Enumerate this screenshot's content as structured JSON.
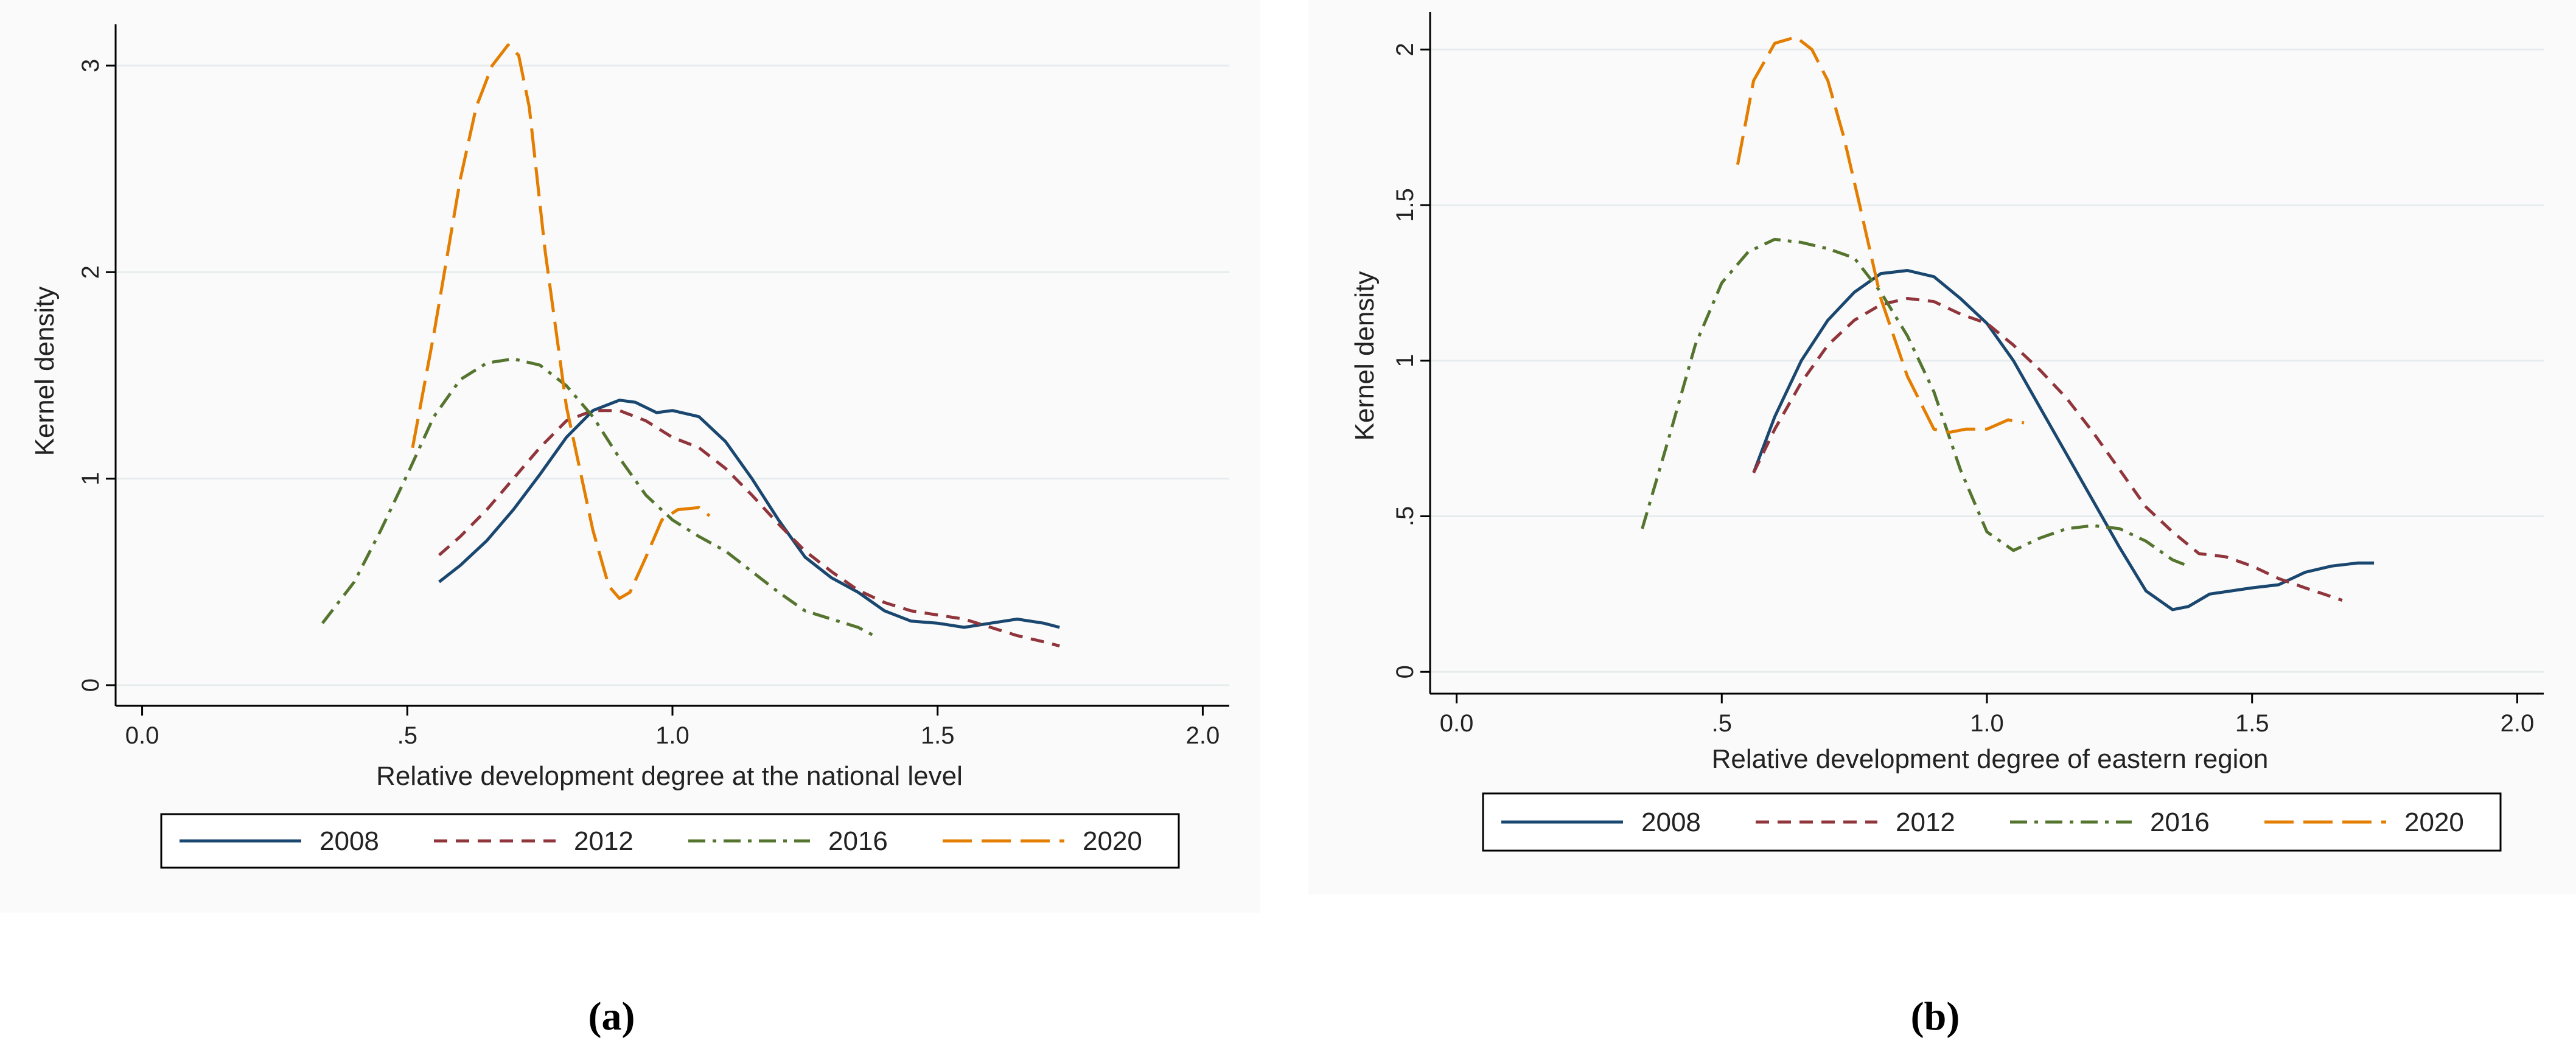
{
  "chart_data": [
    {
      "type": "line",
      "panel_label": "(a)",
      "xlabel": "Relative development degree at the national level",
      "ylabel": "Kernel density",
      "xlim": [
        -0.05,
        2.05
      ],
      "ylim": [
        -0.1,
        3.2
      ],
      "xticks": [
        0,
        0.5,
        1,
        1.5,
        2
      ],
      "xtick_labels": [
        "0.0",
        ".5",
        "1.0",
        "1.5",
        "2.0"
      ],
      "yticks": [
        0,
        1,
        2,
        3
      ],
      "ytick_labels": [
        "0",
        "1",
        "2",
        "3"
      ],
      "grid": true,
      "legend_position": "bottom",
      "series": [
        {
          "name": "2008",
          "color": "#1a476f",
          "dash": "solid",
          "x": [
            0.56,
            0.6,
            0.65,
            0.7,
            0.75,
            0.8,
            0.85,
            0.9,
            0.93,
            0.97,
            1.0,
            1.05,
            1.1,
            1.15,
            1.2,
            1.25,
            1.3,
            1.35,
            1.4,
            1.45,
            1.5,
            1.55,
            1.6,
            1.65,
            1.7,
            1.73
          ],
          "y": [
            0.5,
            0.58,
            0.7,
            0.85,
            1.02,
            1.2,
            1.33,
            1.38,
            1.37,
            1.32,
            1.33,
            1.3,
            1.18,
            1.0,
            0.8,
            0.62,
            0.52,
            0.45,
            0.36,
            0.31,
            0.3,
            0.28,
            0.3,
            0.32,
            0.3,
            0.28
          ]
        },
        {
          "name": "2012",
          "color": "#90353b",
          "dash": "short",
          "x": [
            0.56,
            0.6,
            0.65,
            0.7,
            0.75,
            0.8,
            0.85,
            0.9,
            0.95,
            1.0,
            1.05,
            1.1,
            1.15,
            1.2,
            1.25,
            1.3,
            1.35,
            1.4,
            1.45,
            1.5,
            1.55,
            1.6,
            1.65,
            1.7,
            1.73
          ],
          "y": [
            0.63,
            0.72,
            0.85,
            1.0,
            1.15,
            1.28,
            1.33,
            1.33,
            1.28,
            1.2,
            1.15,
            1.05,
            0.92,
            0.78,
            0.65,
            0.55,
            0.46,
            0.4,
            0.36,
            0.34,
            0.32,
            0.28,
            0.24,
            0.21,
            0.19
          ]
        },
        {
          "name": "2016",
          "color": "#55752f",
          "dash": "dashdot",
          "x": [
            0.34,
            0.4,
            0.45,
            0.5,
            0.55,
            0.6,
            0.65,
            0.7,
            0.75,
            0.8,
            0.85,
            0.9,
            0.95,
            1.0,
            1.05,
            1.1,
            1.15,
            1.2,
            1.25,
            1.3,
            1.35,
            1.38
          ],
          "y": [
            0.3,
            0.5,
            0.75,
            1.02,
            1.3,
            1.48,
            1.56,
            1.58,
            1.55,
            1.45,
            1.3,
            1.1,
            0.92,
            0.8,
            0.72,
            0.65,
            0.55,
            0.45,
            0.36,
            0.32,
            0.28,
            0.24
          ]
        },
        {
          "name": "2020",
          "color": "#e37e00",
          "dash": "longdash",
          "x": [
            0.51,
            0.55,
            0.6,
            0.63,
            0.66,
            0.69,
            0.71,
            0.73,
            0.76,
            0.8,
            0.85,
            0.88,
            0.9,
            0.92,
            0.95,
            0.98,
            1.01,
            1.05,
            1.07
          ],
          "y": [
            1.15,
            1.7,
            2.45,
            2.8,
            3.0,
            3.1,
            3.05,
            2.8,
            2.1,
            1.35,
            0.75,
            0.48,
            0.42,
            0.45,
            0.62,
            0.8,
            0.85,
            0.86,
            0.82
          ]
        }
      ]
    },
    {
      "type": "line",
      "panel_label": "(b)",
      "xlabel": "Relative development degree of eastern region",
      "ylabel": "Kernel density",
      "xlim": [
        -0.05,
        2.05
      ],
      "ylim": [
        -0.07,
        2.12
      ],
      "xticks": [
        0,
        0.5,
        1,
        1.5,
        2
      ],
      "xtick_labels": [
        "0.0",
        ".5",
        "1.0",
        "1.5",
        "2.0"
      ],
      "yticks": [
        0,
        0.5,
        1,
        1.5,
        2
      ],
      "ytick_labels": [
        "0",
        ".5",
        "1",
        "1.5",
        "2"
      ],
      "grid": true,
      "legend_position": "bottom",
      "series": [
        {
          "name": "2008",
          "color": "#1a476f",
          "dash": "solid",
          "x": [
            0.56,
            0.6,
            0.65,
            0.7,
            0.75,
            0.8,
            0.85,
            0.9,
            0.95,
            1.0,
            1.05,
            1.1,
            1.15,
            1.2,
            1.25,
            1.3,
            1.35,
            1.38,
            1.42,
            1.5,
            1.55,
            1.6,
            1.65,
            1.7,
            1.73
          ],
          "y": [
            0.64,
            0.82,
            1.0,
            1.13,
            1.22,
            1.28,
            1.29,
            1.27,
            1.2,
            1.12,
            1.0,
            0.85,
            0.7,
            0.55,
            0.4,
            0.26,
            0.2,
            0.21,
            0.25,
            0.27,
            0.28,
            0.32,
            0.34,
            0.35,
            0.35
          ]
        },
        {
          "name": "2012",
          "color": "#90353b",
          "dash": "short",
          "x": [
            0.56,
            0.6,
            0.65,
            0.7,
            0.75,
            0.8,
            0.85,
            0.9,
            0.95,
            1.0,
            1.05,
            1.1,
            1.15,
            1.2,
            1.25,
            1.3,
            1.35,
            1.4,
            1.45,
            1.5,
            1.55,
            1.6,
            1.67
          ],
          "y": [
            0.64,
            0.78,
            0.93,
            1.05,
            1.13,
            1.18,
            1.2,
            1.19,
            1.15,
            1.12,
            1.05,
            0.97,
            0.88,
            0.77,
            0.65,
            0.53,
            0.45,
            0.38,
            0.37,
            0.34,
            0.3,
            0.27,
            0.23
          ]
        },
        {
          "name": "2016",
          "color": "#55752f",
          "dash": "dashdot",
          "x": [
            0.35,
            0.4,
            0.45,
            0.5,
            0.55,
            0.6,
            0.65,
            0.7,
            0.75,
            0.8,
            0.85,
            0.9,
            0.95,
            1.0,
            1.05,
            1.1,
            1.15,
            1.2,
            1.25,
            1.3,
            1.35,
            1.38
          ],
          "y": [
            0.46,
            0.75,
            1.05,
            1.25,
            1.35,
            1.39,
            1.38,
            1.36,
            1.33,
            1.22,
            1.08,
            0.9,
            0.65,
            0.45,
            0.39,
            0.43,
            0.46,
            0.47,
            0.46,
            0.42,
            0.36,
            0.34
          ]
        },
        {
          "name": "2020",
          "color": "#e37e00",
          "dash": "longdash",
          "x": [
            0.53,
            0.56,
            0.6,
            0.64,
            0.67,
            0.7,
            0.73,
            0.76,
            0.8,
            0.85,
            0.9,
            0.93,
            0.96,
            1.0,
            1.04,
            1.07
          ],
          "y": [
            1.63,
            1.9,
            2.02,
            2.04,
            2.0,
            1.9,
            1.72,
            1.5,
            1.2,
            0.95,
            0.78,
            0.77,
            0.78,
            0.78,
            0.81,
            0.8
          ]
        }
      ]
    }
  ]
}
